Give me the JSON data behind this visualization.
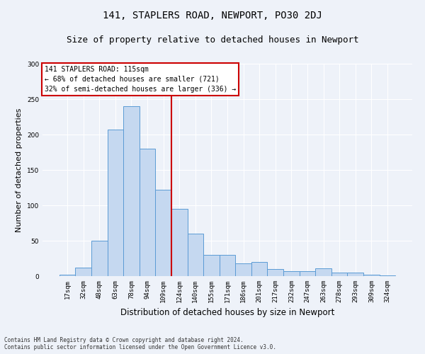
{
  "title": "141, STAPLERS ROAD, NEWPORT, PO30 2DJ",
  "subtitle": "Size of property relative to detached houses in Newport",
  "xlabel": "Distribution of detached houses by size in Newport",
  "ylabel": "Number of detached properties",
  "bar_labels": [
    "17sqm",
    "32sqm",
    "48sqm",
    "63sqm",
    "78sqm",
    "94sqm",
    "109sqm",
    "124sqm",
    "140sqm",
    "155sqm",
    "171sqm",
    "186sqm",
    "201sqm",
    "217sqm",
    "232sqm",
    "247sqm",
    "263sqm",
    "278sqm",
    "293sqm",
    "309sqm",
    "324sqm"
  ],
  "bar_values": [
    2,
    12,
    50,
    207,
    240,
    180,
    122,
    95,
    60,
    30,
    30,
    18,
    20,
    10,
    7,
    7,
    11,
    5,
    5,
    2,
    1
  ],
  "bar_color": "#c5d8f0",
  "bar_edge_color": "#5b9bd5",
  "vline_color": "#cc0000",
  "vline_x_index": 7,
  "ylim": [
    0,
    300
  ],
  "yticks": [
    0,
    50,
    100,
    150,
    200,
    250,
    300
  ],
  "annotation_title": "141 STAPLERS ROAD: 115sqm",
  "annotation_line1": "← 68% of detached houses are smaller (721)",
  "annotation_line2": "32% of semi-detached houses are larger (336) →",
  "annotation_box_facecolor": "#ffffff",
  "annotation_box_edgecolor": "#cc0000",
  "footer_line1": "Contains HM Land Registry data © Crown copyright and database right 2024.",
  "footer_line2": "Contains public sector information licensed under the Open Government Licence v3.0.",
  "background_color": "#eef2f9",
  "grid_color": "#ffffff",
  "title_fontsize": 10,
  "subtitle_fontsize": 9,
  "tick_fontsize": 6.5,
  "ylabel_fontsize": 8,
  "xlabel_fontsize": 8.5,
  "annotation_fontsize": 7,
  "footer_fontsize": 5.5
}
